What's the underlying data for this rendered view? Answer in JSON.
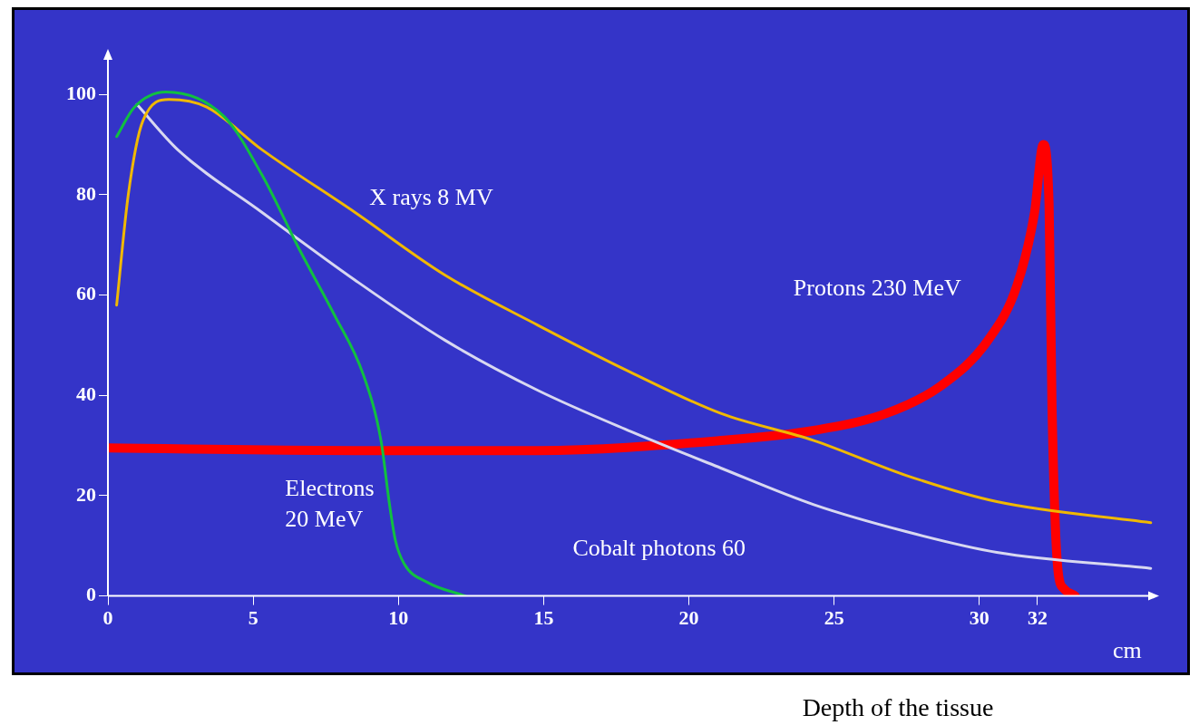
{
  "chart_data": {
    "type": "line",
    "xlabel": "Depth of the tissue",
    "annotations": [
      "cm"
    ],
    "xlim": [
      0,
      36
    ],
    "ylim": [
      0,
      108
    ],
    "xticks": [
      0,
      5,
      10,
      15,
      20,
      25,
      30,
      32
    ],
    "yticks": [
      0,
      20,
      40,
      60,
      80,
      100
    ],
    "grid": false,
    "legend": false,
    "marker": "none",
    "line_style": "solid",
    "series": [
      {
        "name": "Electrons 20 MeV",
        "color": "#11c040",
        "x": [
          0.3,
          0.9,
          2.0,
          4.0,
          5.3,
          6.6,
          7.8,
          8.8,
          9.4,
          9.7,
          9.9,
          10.2,
          11,
          12.3
        ],
        "values": [
          91.6,
          97.4,
          100.5,
          95.6,
          84,
          69,
          56,
          44,
          31,
          18,
          11,
          6.4,
          2.7,
          0
        ]
      },
      {
        "name": "X rays 8 MV",
        "color": "#f0b800",
        "x": [
          0.3,
          0.7,
          1.2,
          2.1,
          3.4,
          5.3,
          8.5,
          11.6,
          14.8,
          18,
          21.1,
          24.3,
          27.5,
          30.6,
          35.9
        ],
        "values": [
          58,
          80,
          94.7,
          99,
          97.5,
          89,
          76.5,
          64,
          54,
          44.6,
          36.4,
          31,
          24,
          18.8,
          14.6
        ]
      },
      {
        "name": "Cobalt photons 60",
        "color": "#d8d8f0",
        "x": [
          1.0,
          2.4,
          5.3,
          8.5,
          11.6,
          14.8,
          18,
          21.1,
          24.3,
          27.5,
          30.6,
          35.9
        ],
        "values": [
          98,
          89,
          76.5,
          63,
          51,
          41,
          32.8,
          25.5,
          18.2,
          12.8,
          8.7,
          5.5
        ]
      },
      {
        "name": "Protons 230 MeV",
        "color": "#ff0000",
        "x": [
          0,
          8.5,
          14.8,
          21.1,
          24.3,
          26.8,
          28.7,
          30.3,
          31.3,
          31.9,
          32.2,
          32.4,
          32.5,
          32.7,
          32.9,
          33.3
        ],
        "values": [
          29.5,
          29,
          29,
          31,
          33,
          36.4,
          42,
          51,
          62,
          76.5,
          90,
          78,
          38,
          5.5,
          1.5,
          0
        ]
      }
    ]
  }
}
